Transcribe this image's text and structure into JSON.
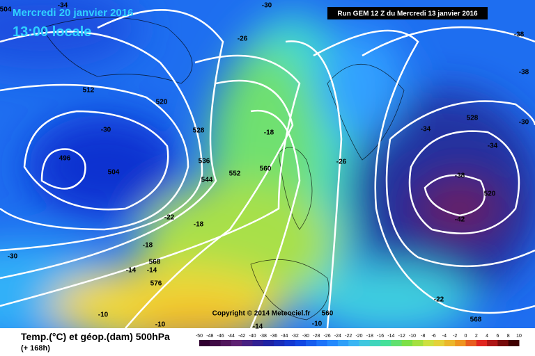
{
  "header": {
    "date": "Mercredi 20 janvier 2016",
    "time": "13:00 locale",
    "run": "Run GEM 12 Z du Mercredi 13 janvier 2016"
  },
  "copyright": "Copyright © 2014 Meteociel.fr",
  "contour_labels": [
    "504",
    "-34",
    "-30",
    "-26",
    "-38",
    "-38",
    "512",
    "520",
    "-30",
    "528",
    "-18",
    "-34",
    "528",
    "-30",
    "-34",
    "496",
    "504",
    "536",
    "-26",
    "560",
    "552",
    "544",
    "-38",
    "520",
    "-22",
    "-18",
    "-42",
    "-30",
    "-18",
    "568",
    "-14",
    "-14",
    "576",
    "-22",
    "-10",
    "560",
    "568",
    "-10",
    "-14",
    "-10"
  ],
  "footer": {
    "title": "Temp.(°C) et géop.(dam) 500hPa",
    "lead": "(+ 168h)"
  },
  "colorbar": {
    "ticks": [
      -50,
      -48,
      -46,
      -44,
      -42,
      -40,
      -38,
      -36,
      -34,
      -32,
      -30,
      -28,
      -26,
      -24,
      -22,
      -20,
      -18,
      -16,
      -14,
      -12,
      -10,
      -8,
      -6,
      -4,
      -2,
      0,
      2,
      4,
      6,
      8,
      10
    ]
  }
}
